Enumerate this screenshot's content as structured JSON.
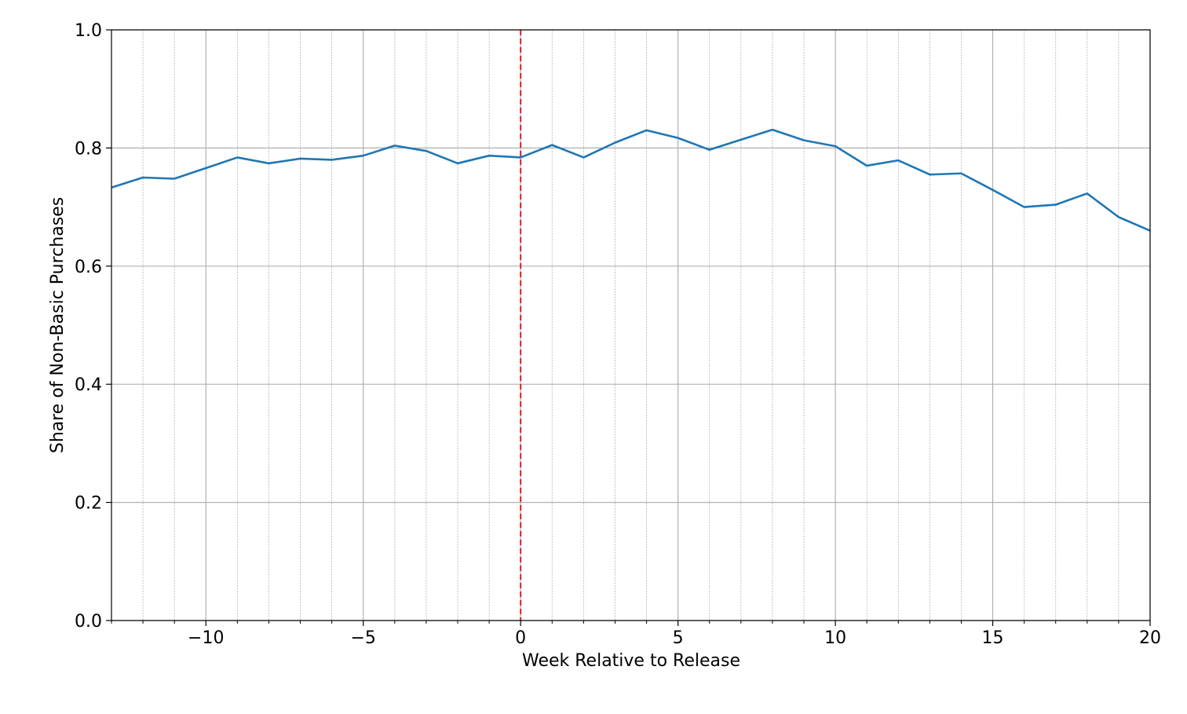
{
  "chart_data": {
    "type": "line",
    "title": "",
    "xlabel": "Week Relative to Release",
    "ylabel": "Share of Non-Basic Purchases",
    "xlim": [
      -13,
      20
    ],
    "ylim": [
      0.0,
      1.0
    ],
    "x_major_ticks": [
      -10,
      -5,
      0,
      5,
      10,
      15,
      20
    ],
    "x_tick_labels": [
      "−10",
      "−5",
      "0",
      "5",
      "10",
      "15",
      "20"
    ],
    "y_major_ticks": [
      0.0,
      0.2,
      0.4,
      0.6,
      0.8,
      1.0
    ],
    "y_tick_labels": [
      "0.0",
      "0.2",
      "0.4",
      "0.6",
      "0.8",
      "1.0"
    ],
    "x_minor_step": 1,
    "grid": true,
    "series": [
      {
        "color": "#1f77b4",
        "x": [
          -13,
          -12,
          -11,
          -10,
          -9,
          -8,
          -7,
          -6,
          -5,
          -4,
          -3,
          -2,
          -1,
          0,
          1,
          2,
          3,
          4,
          5,
          6,
          7,
          8,
          9,
          10,
          11,
          12,
          13,
          14,
          15,
          16,
          17,
          18,
          19,
          20
        ],
        "y": [
          0.733,
          0.75,
          0.748,
          0.766,
          0.784,
          0.774,
          0.782,
          0.78,
          0.787,
          0.804,
          0.795,
          0.774,
          0.787,
          0.784,
          0.805,
          0.784,
          0.809,
          0.83,
          0.817,
          0.797,
          0.814,
          0.831,
          0.813,
          0.803,
          0.77,
          0.779,
          0.755,
          0.757,
          0.729,
          0.7,
          0.704,
          0.723,
          0.683,
          0.66
        ]
      }
    ],
    "reference_line": {
      "x": 0,
      "color": "#e31a1c",
      "style": "dashed"
    }
  }
}
